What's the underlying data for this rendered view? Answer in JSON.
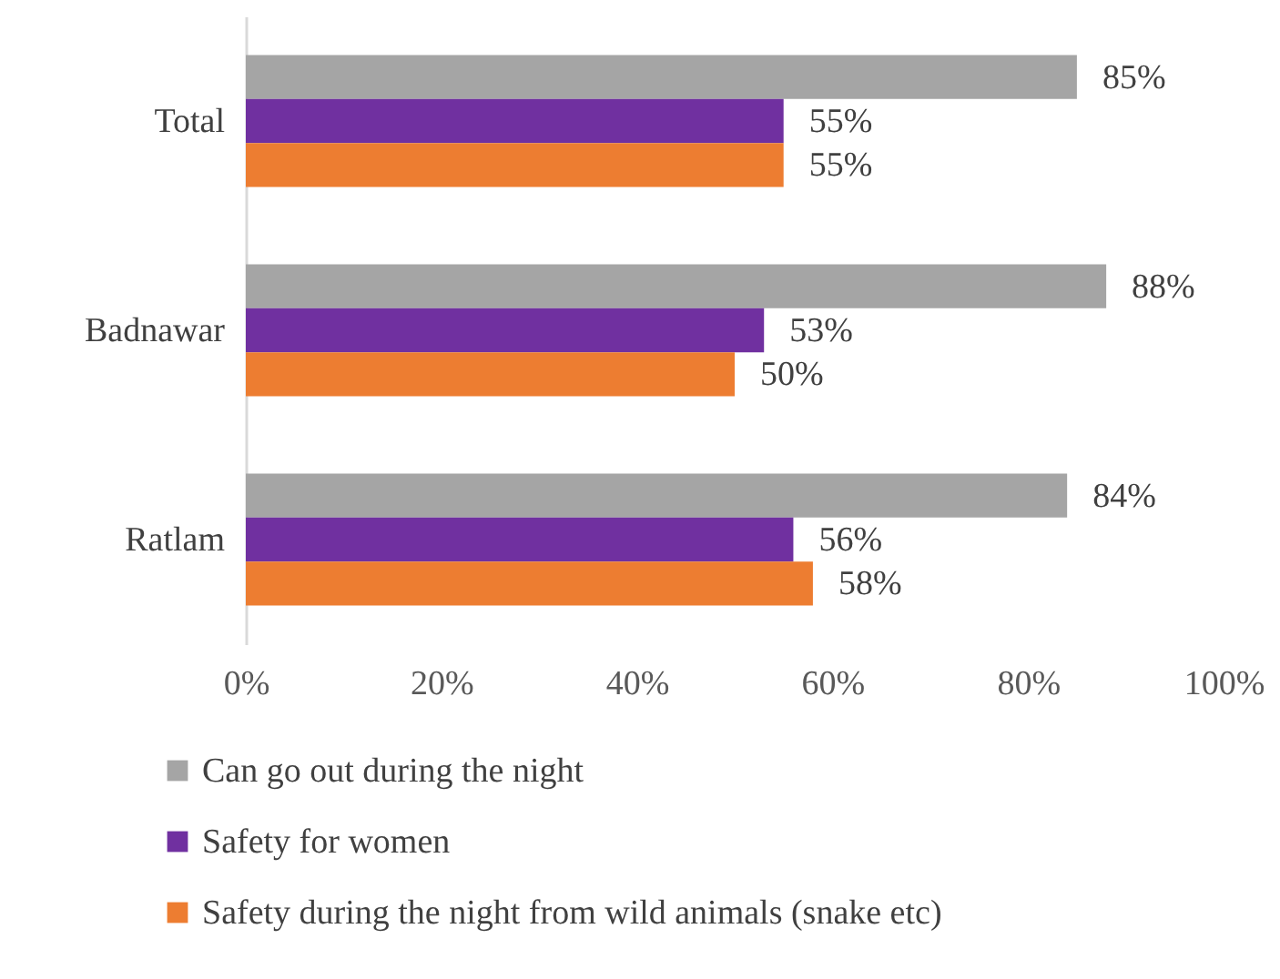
{
  "chart_data": {
    "type": "bar",
    "orientation": "horizontal",
    "categories": [
      "Total",
      "Badnawar",
      "Ratlam"
    ],
    "series": [
      {
        "name": "Can go out during the night",
        "color": "#a5a5a5",
        "values": [
          85,
          88,
          84
        ],
        "value_labels": [
          "85%",
          "88%",
          "84%"
        ]
      },
      {
        "name": "Safety for women",
        "color": "#7030a0",
        "values": [
          55,
          53,
          56
        ],
        "value_labels": [
          "55%",
          "53%",
          "56%"
        ]
      },
      {
        "name": "Safety during the night from wild animals (snake etc)",
        "color": "#ed7d31",
        "values": [
          55,
          50,
          58
        ],
        "value_labels": [
          "55%",
          "50%",
          "58%"
        ]
      }
    ],
    "xlim": [
      0,
      100
    ],
    "xticks": [
      {
        "value": 0,
        "label": "0%"
      },
      {
        "value": 20,
        "label": "20%"
      },
      {
        "value": 40,
        "label": "40%"
      },
      {
        "value": 60,
        "label": "60%"
      },
      {
        "value": 80,
        "label": "80%"
      },
      {
        "value": 100,
        "label": "100%"
      }
    ],
    "grid": false,
    "legend": "bottom"
  }
}
